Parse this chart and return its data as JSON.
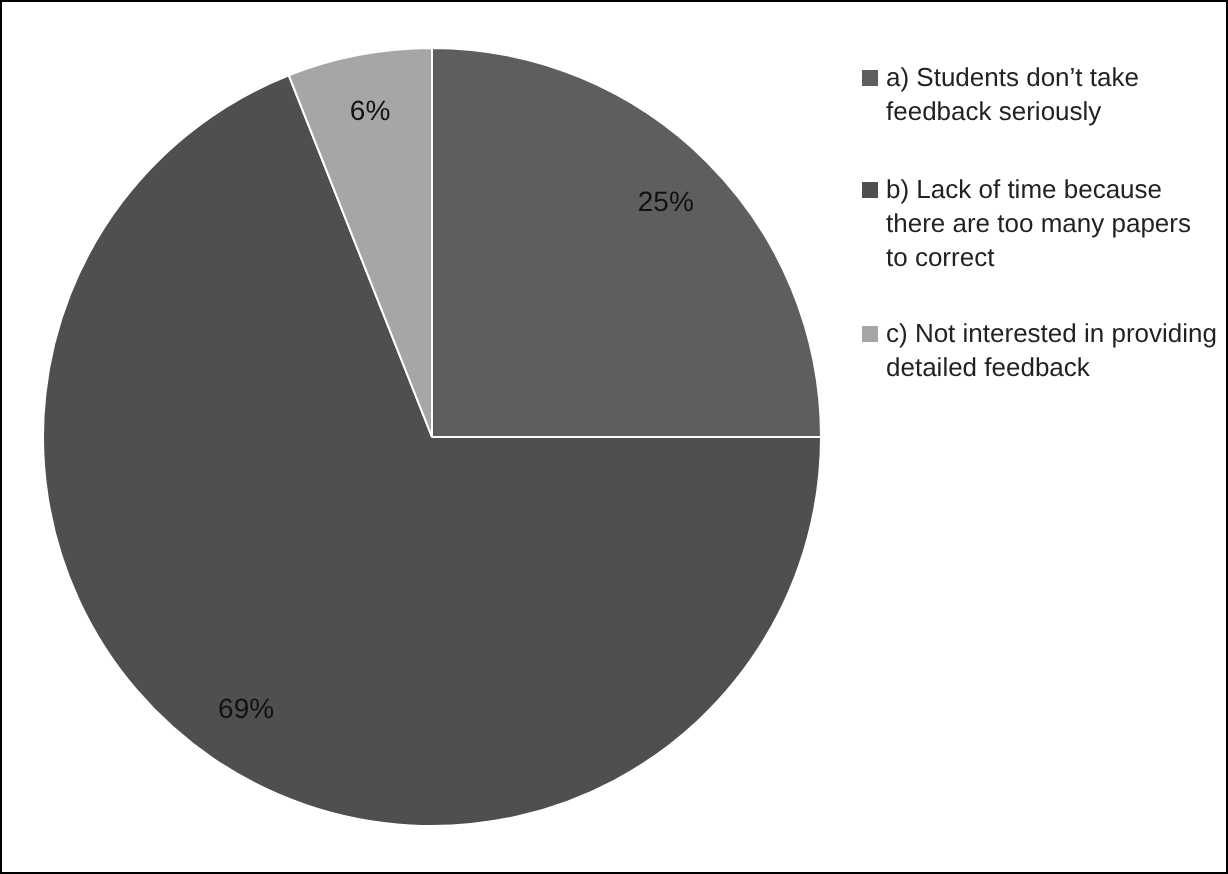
{
  "chart_data": {
    "type": "pie",
    "categories": [
      "a) Students don’t take feedback seriously",
      "b) Lack of time because there are too many papers to correct",
      "c) Not interested in providing detailed feedback"
    ],
    "values": [
      25,
      69,
      6
    ],
    "colors": [
      "#5e5e5e",
      "#4f4f4f",
      "#a6a6a6"
    ],
    "value_labels": [
      "25%",
      "69%",
      "6%"
    ],
    "legend": "right"
  }
}
